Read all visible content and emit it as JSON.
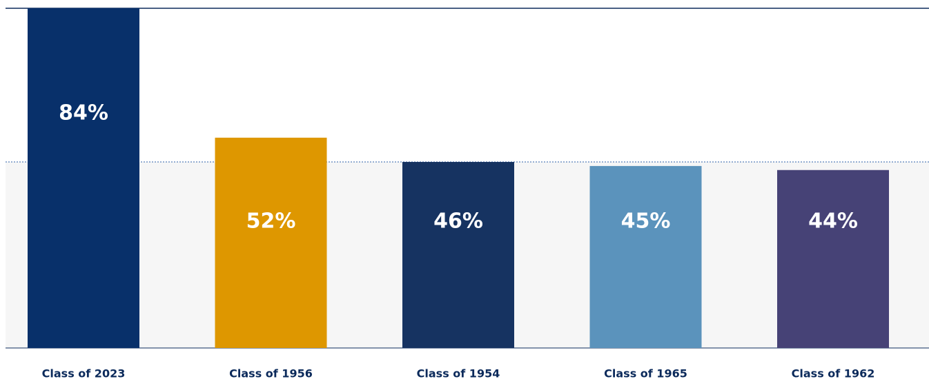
{
  "chart_data": {
    "type": "bar",
    "categories": [
      "Class of 2023",
      "Class of 1956",
      "Class of 1954",
      "Class of 1965",
      "Class of 1962"
    ],
    "values": [
      84,
      52,
      46,
      45,
      44
    ],
    "value_labels": [
      "84%",
      "52%",
      "46%",
      "45%",
      "44%"
    ],
    "colors": [
      "#08306a",
      "#de9700",
      "#163361",
      "#5b93bc",
      "#464276"
    ],
    "ylim": [
      0,
      84
    ]
  }
}
